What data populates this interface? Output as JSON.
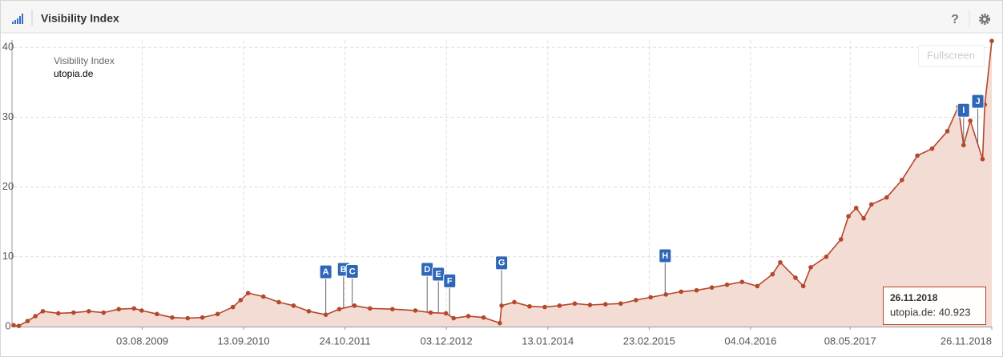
{
  "header": {
    "title": "Visibility Index",
    "help": "?"
  },
  "fullscreen": "Fullscreen",
  "tooltip": {
    "title": "26.11.2018",
    "text": "utopia.de: 40.923"
  },
  "chart_data": {
    "type": "area",
    "legend_title": "Visibility Index",
    "x": [
      "06.03.2008",
      "27.03.2008",
      "01.05.2008",
      "01.06.2008",
      "01.07.2008",
      "01.09.2008",
      "01.11.2008",
      "01.01.2009",
      "01.03.2009",
      "01.05.2009",
      "01.07.2009",
      "01.08.2009",
      "01.10.2009",
      "01.12.2009",
      "01.02.2010",
      "01.04.2010",
      "01.06.2010",
      "01.08.2010",
      "01.09.2010",
      "01.10.2010",
      "01.12.2010",
      "01.02.2011",
      "01.04.2011",
      "01.06.2011",
      "08.08.2011",
      "01.10.2011",
      "01.12.2011",
      "01.02.2012",
      "01.05.2012",
      "01.08.2012",
      "01.10.2012",
      "01.12.2012",
      "01.01.2013",
      "01.03.2013",
      "01.05.2013",
      "05.07.2013",
      "12.07.2013",
      "01.09.2013",
      "01.11.2013",
      "01.01.2014",
      "01.03.2014",
      "01.05.2014",
      "01.07.2014",
      "01.09.2014",
      "01.11.2014",
      "01.01.2015",
      "01.03.2015",
      "01.05.2015",
      "01.07.2015",
      "01.09.2015",
      "01.11.2015",
      "01.01.2016",
      "01.03.2016",
      "01.05.2016",
      "01.07.2016",
      "01.08.2016",
      "01.10.2016",
      "01.11.2016",
      "01.12.2016",
      "01.02.2017",
      "01.04.2017",
      "01.05.2017",
      "01.06.2017",
      "01.07.2017",
      "01.08.2017",
      "01.10.2017",
      "01.12.2017",
      "01.02.2018",
      "01.04.2018",
      "01.06.2018",
      "15.07.2018",
      "05.08.2018",
      "01.09.2018",
      "20.10.2018",
      "29.10.2018",
      "26.11.2018"
    ],
    "series": [
      {
        "name": "utopia.de",
        "color": "#b5472a",
        "fill": "#f3dcd4",
        "values": [
          0.2,
          0.1,
          0.8,
          1.5,
          2.2,
          1.9,
          2.0,
          2.2,
          2.0,
          2.5,
          2.6,
          2.3,
          1.8,
          1.3,
          1.2,
          1.3,
          1.8,
          2.8,
          3.8,
          4.8,
          4.3,
          3.5,
          3.0,
          2.2,
          1.7,
          2.5,
          3.0,
          2.6,
          2.5,
          2.3,
          2.0,
          1.9,
          1.2,
          1.5,
          1.3,
          0.5,
          3.0,
          3.5,
          2.9,
          2.8,
          3.0,
          3.3,
          3.1,
          3.2,
          3.3,
          3.8,
          4.2,
          4.6,
          5.0,
          5.2,
          5.6,
          6.0,
          6.4,
          5.8,
          7.5,
          9.2,
          7.0,
          5.8,
          8.5,
          10.0,
          12.5,
          15.8,
          17.0,
          15.5,
          17.5,
          18.5,
          21.0,
          24.5,
          25.5,
          28.0,
          31.5,
          26.0,
          29.5,
          24.0,
          31.8,
          40.923
        ]
      }
    ],
    "xlim": [
      "06.03.2008",
      "26.11.2018"
    ],
    "xticks": [
      "03.08.2009",
      "13.09.2010",
      "24.10.2011",
      "03.12.2012",
      "13.01.2014",
      "23.02.2015",
      "04.04.2016",
      "08.05.2017",
      "26.11.2018"
    ],
    "ylim": [
      0,
      41
    ],
    "yticks": [
      0,
      10,
      20,
      30,
      40
    ],
    "grid": true,
    "events": [
      {
        "label": "A",
        "x": "08.08.2011"
      },
      {
        "label": "B",
        "x": "18.10.2011"
      },
      {
        "label": "C",
        "x": "22.11.2011"
      },
      {
        "label": "D",
        "x": "17.09.2012"
      },
      {
        "label": "E",
        "x": "01.11.2012"
      },
      {
        "label": "F",
        "x": "16.12.2012"
      },
      {
        "label": "G",
        "x": "12.07.2013"
      },
      {
        "label": "H",
        "x": "28.04.2015"
      },
      {
        "label": "I",
        "x": "05.08.2018"
      },
      {
        "label": "J",
        "x": "01.10.2018"
      }
    ]
  }
}
